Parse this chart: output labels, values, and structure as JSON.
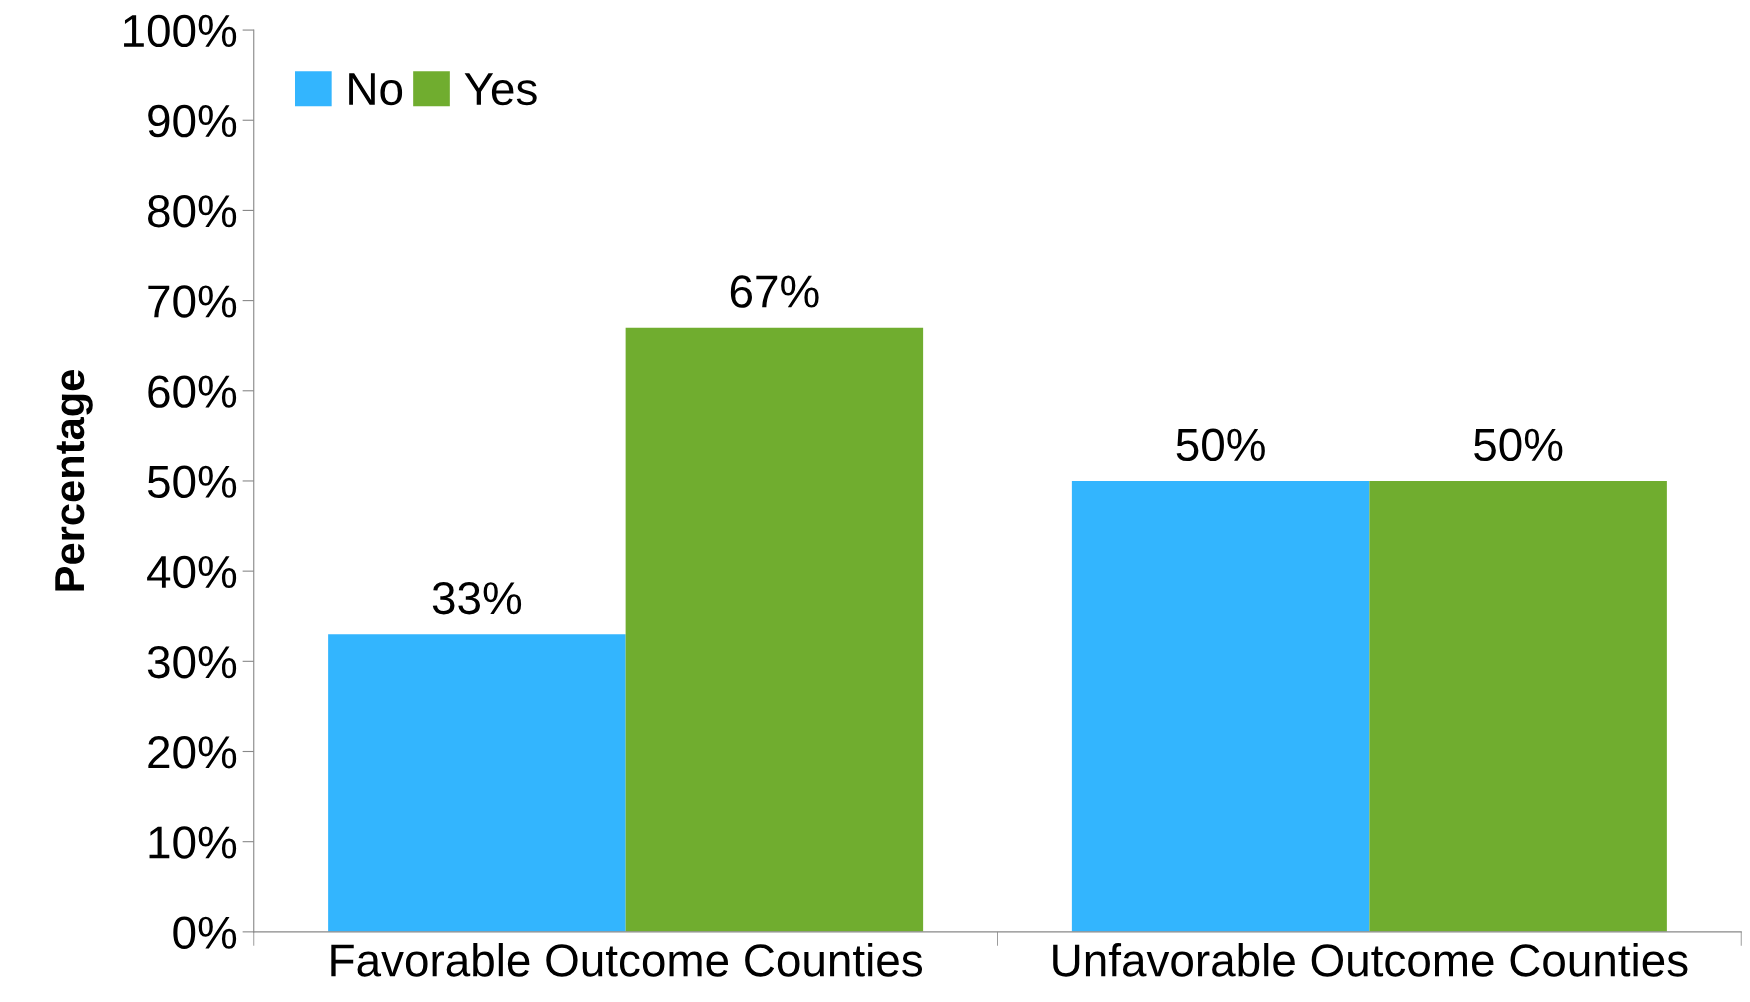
{
  "chart_data": {
    "type": "bar",
    "ylabel": "Percentage",
    "categories": [
      "Favorable Outcome Counties",
      "Unfavorable Outcome Counties"
    ],
    "series": [
      {
        "name": "No",
        "color": "#33b5fe",
        "values": [
          33,
          50
        ],
        "value_labels": [
          "33%",
          "50%"
        ]
      },
      {
        "name": "Yes",
        "color": "#70ad2f",
        "values": [
          67,
          50
        ],
        "value_labels": [
          "67%",
          "50%"
        ]
      }
    ],
    "ylim": [
      0,
      100
    ],
    "yticks": [
      {
        "value": 0,
        "label": "0%"
      },
      {
        "value": 10,
        "label": "10%"
      },
      {
        "value": 20,
        "label": "20%"
      },
      {
        "value": 30,
        "label": "30%"
      },
      {
        "value": 40,
        "label": "40%"
      },
      {
        "value": 50,
        "label": "50%"
      },
      {
        "value": 60,
        "label": "60%"
      },
      {
        "value": 70,
        "label": "70%"
      },
      {
        "value": 80,
        "label": "80%"
      },
      {
        "value": 90,
        "label": "90%"
      },
      {
        "value": 100,
        "label": "100%"
      }
    ],
    "grid": false,
    "legend": "top left"
  }
}
